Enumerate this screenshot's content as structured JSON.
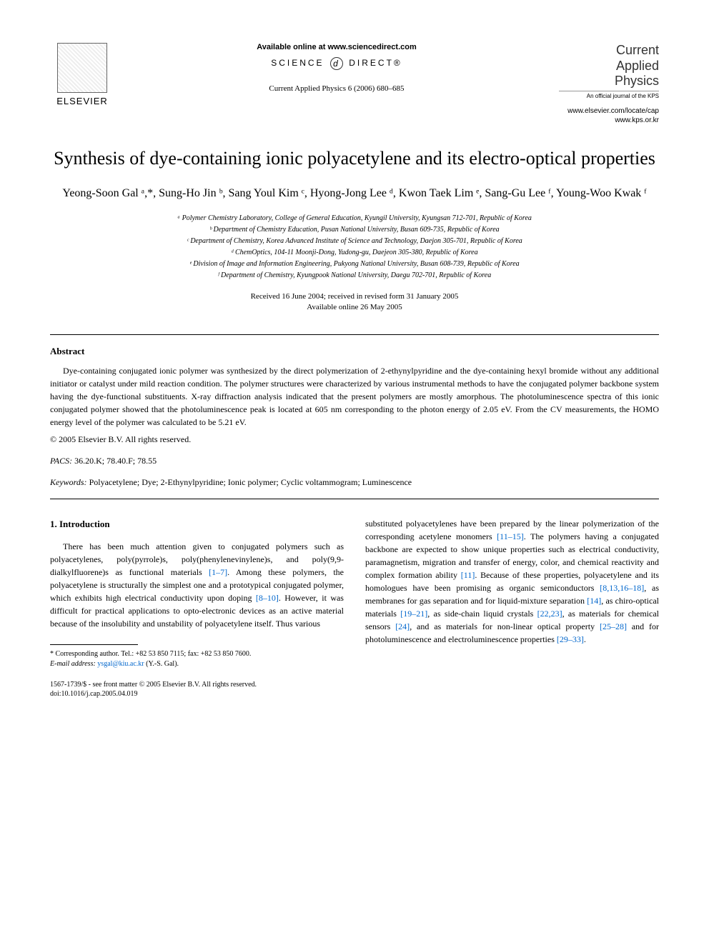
{
  "header": {
    "available_online": "Available online at www.sciencedirect.com",
    "science_direct_left": "SCIENCE",
    "science_direct_right": "DIRECT®",
    "journal_ref": "Current Applied Physics 6 (2006) 680–685",
    "publisher_name": "ELSEVIER",
    "journal_title_line1": "Current",
    "journal_title_line2": "Applied",
    "journal_title_line3": "Physics",
    "journal_subtitle": "An official journal of the KPS",
    "journal_url1": "www.elsevier.com/locate/cap",
    "journal_url2": "www.kps.or.kr"
  },
  "title": "Synthesis of dye-containing ionic polyacetylene and its electro-optical properties",
  "authors": "Yeong-Soon Gal ᵃ,*, Sung-Ho Jin ᵇ, Sang Youl Kim ᶜ, Hyong-Jong Lee ᵈ, Kwon Taek Lim ᵉ, Sang-Gu Lee ᶠ, Young-Woo Kwak ᶠ",
  "affiliations": [
    "ᵃ Polymer Chemistry Laboratory, College of General Education, Kyungil University, Kyungsan 712-701, Republic of Korea",
    "ᵇ Department of Chemistry Education, Pusan National University, Busan 609-735, Republic of Korea",
    "ᶜ Department of Chemistry, Korea Advanced Institute of Science and Technology, Daejon 305-701, Republic of Korea",
    "ᵈ ChemOptics, 104-11 Moonji-Dong, Yudong-gu, Daejeon 305-380, Republic of Korea",
    "ᵉ Division of Image and Information Engineering, Pukyong National University, Busan 608-739, Republic of Korea",
    "ᶠ Department of Chemistry, Kyungpook National University, Daegu 702-701, Republic of Korea"
  ],
  "dates": {
    "received": "Received 16 June 2004; received in revised form 31 January 2005",
    "available": "Available online 26 May 2005"
  },
  "abstract": {
    "heading": "Abstract",
    "text": "Dye-containing conjugated ionic polymer was synthesized by the direct polymerization of 2-ethynylpyridine and the dye-containing hexyl bromide without any additional initiator or catalyst under mild reaction condition. The polymer structures were characterized by various instrumental methods to have the conjugated polymer backbone system having the dye-functional substituents. X-ray diffraction analysis indicated that the present polymers are mostly amorphous. The photoluminescence spectra of this ionic conjugated polymer showed that the photoluminescence peak is located at 605 nm corresponding to the photon energy of 2.05 eV. From the CV measurements, the HOMO energy level of the polymer was calculated to be 5.21 eV.",
    "copyright": "© 2005 Elsevier B.V. All rights reserved."
  },
  "pacs": {
    "label": "PACS:",
    "values": "36.20.K; 78.40.F; 78.55"
  },
  "keywords": {
    "label": "Keywords:",
    "values": "Polyacetylene; Dye; 2-Ethynylpyridine; Ionic polymer; Cyclic voltammogram; Luminescence"
  },
  "section1": {
    "heading": "1. Introduction",
    "col1_part1": "There has been much attention given to conjugated polymers such as polyacetylenes, poly(pyrrole)s, poly(phenylenevinylene)s, and poly(9,9-dialkylfluorene)s as functional materials ",
    "ref1": "[1–7]",
    "col1_part2": ". Among these polymers, the polyacetylene is structurally the simplest one and a prototypical conjugated polymer, which exhibits high electrical conductivity upon doping ",
    "ref2": "[8–10]",
    "col1_part3": ". However, it was difficult for practical applications to opto-electronic devices as an active material because of the insolubility and unstability of polyacetylene itself. Thus various",
    "col2_part1": "substituted polyacetylenes have been prepared by the linear polymerization of the corresponding acetylene monomers ",
    "ref3": "[11–15]",
    "col2_part2": ". The polymers having a conjugated backbone are expected to show unique properties such as electrical conductivity, paramagnetism, migration and transfer of energy, color, and chemical reactivity and complex formation ability ",
    "ref4": "[11]",
    "col2_part3": ". Because of these properties, polyacetylene and its homologues have been promising as organic semiconductors ",
    "ref5": "[8,13,16–18]",
    "col2_part4": ", as membranes for gas separation and for liquid-mixture separation ",
    "ref6": "[14]",
    "col2_part5": ", as chiro-optical materials ",
    "ref7": "[19–21]",
    "col2_part6": ", as side-chain liquid crystals ",
    "ref8": "[22,23]",
    "col2_part7": ", as materials for chemical sensors ",
    "ref9": "[24]",
    "col2_part8": ", and as materials for non-linear optical property ",
    "ref10": "[25–28]",
    "col2_part9": " and for photoluminescence and electroluminescence properties ",
    "ref11": "[29–33]",
    "col2_part10": "."
  },
  "footnote": {
    "corresponding": "* Corresponding author. Tel.: +82 53 850 7115; fax: +82 53 850 7600.",
    "email_label": "E-mail address:",
    "email": "ysgal@kiu.ac.kr",
    "email_name": "(Y.-S. Gal)."
  },
  "footer": {
    "line1": "1567-1739/$ - see front matter © 2005 Elsevier B.V. All rights reserved.",
    "line2": "doi:10.1016/j.cap.2005.04.019"
  }
}
